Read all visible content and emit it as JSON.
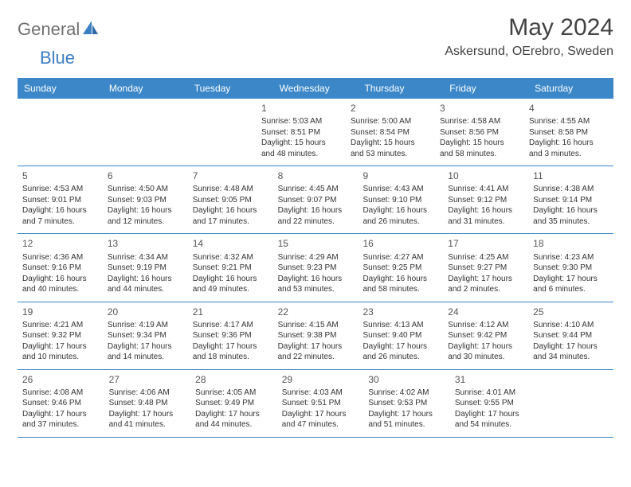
{
  "logo": {
    "general": "General",
    "blue": "Blue"
  },
  "title": "May 2024",
  "location": "Askersund, OErebro, Sweden",
  "colors": {
    "header_bg": "#3b87c8",
    "header_text": "#ffffff",
    "divider": "#3b87c8",
    "body_text": "#333333",
    "title_text": "#424242",
    "logo_gray": "#6f6f6f",
    "logo_blue": "#3b7fc4",
    "background": "#ffffff"
  },
  "layout": {
    "columns": 7,
    "rows": 5,
    "day_header_fontsize": 12,
    "cell_fontsize": 10,
    "title_fontsize": 30,
    "location_fontsize": 16
  },
  "dayNames": [
    "Sunday",
    "Monday",
    "Tuesday",
    "Wednesday",
    "Thursday",
    "Friday",
    "Saturday"
  ],
  "weeks": [
    [
      null,
      null,
      null,
      {
        "n": "1",
        "sr": "Sunrise: 5:03 AM",
        "ss": "Sunset: 8:51 PM",
        "dl1": "Daylight: 15 hours",
        "dl2": "and 48 minutes."
      },
      {
        "n": "2",
        "sr": "Sunrise: 5:00 AM",
        "ss": "Sunset: 8:54 PM",
        "dl1": "Daylight: 15 hours",
        "dl2": "and 53 minutes."
      },
      {
        "n": "3",
        "sr": "Sunrise: 4:58 AM",
        "ss": "Sunset: 8:56 PM",
        "dl1": "Daylight: 15 hours",
        "dl2": "and 58 minutes."
      },
      {
        "n": "4",
        "sr": "Sunrise: 4:55 AM",
        "ss": "Sunset: 8:58 PM",
        "dl1": "Daylight: 16 hours",
        "dl2": "and 3 minutes."
      }
    ],
    [
      {
        "n": "5",
        "sr": "Sunrise: 4:53 AM",
        "ss": "Sunset: 9:01 PM",
        "dl1": "Daylight: 16 hours",
        "dl2": "and 7 minutes."
      },
      {
        "n": "6",
        "sr": "Sunrise: 4:50 AM",
        "ss": "Sunset: 9:03 PM",
        "dl1": "Daylight: 16 hours",
        "dl2": "and 12 minutes."
      },
      {
        "n": "7",
        "sr": "Sunrise: 4:48 AM",
        "ss": "Sunset: 9:05 PM",
        "dl1": "Daylight: 16 hours",
        "dl2": "and 17 minutes."
      },
      {
        "n": "8",
        "sr": "Sunrise: 4:45 AM",
        "ss": "Sunset: 9:07 PM",
        "dl1": "Daylight: 16 hours",
        "dl2": "and 22 minutes."
      },
      {
        "n": "9",
        "sr": "Sunrise: 4:43 AM",
        "ss": "Sunset: 9:10 PM",
        "dl1": "Daylight: 16 hours",
        "dl2": "and 26 minutes."
      },
      {
        "n": "10",
        "sr": "Sunrise: 4:41 AM",
        "ss": "Sunset: 9:12 PM",
        "dl1": "Daylight: 16 hours",
        "dl2": "and 31 minutes."
      },
      {
        "n": "11",
        "sr": "Sunrise: 4:38 AM",
        "ss": "Sunset: 9:14 PM",
        "dl1": "Daylight: 16 hours",
        "dl2": "and 35 minutes."
      }
    ],
    [
      {
        "n": "12",
        "sr": "Sunrise: 4:36 AM",
        "ss": "Sunset: 9:16 PM",
        "dl1": "Daylight: 16 hours",
        "dl2": "and 40 minutes."
      },
      {
        "n": "13",
        "sr": "Sunrise: 4:34 AM",
        "ss": "Sunset: 9:19 PM",
        "dl1": "Daylight: 16 hours",
        "dl2": "and 44 minutes."
      },
      {
        "n": "14",
        "sr": "Sunrise: 4:32 AM",
        "ss": "Sunset: 9:21 PM",
        "dl1": "Daylight: 16 hours",
        "dl2": "and 49 minutes."
      },
      {
        "n": "15",
        "sr": "Sunrise: 4:29 AM",
        "ss": "Sunset: 9:23 PM",
        "dl1": "Daylight: 16 hours",
        "dl2": "and 53 minutes."
      },
      {
        "n": "16",
        "sr": "Sunrise: 4:27 AM",
        "ss": "Sunset: 9:25 PM",
        "dl1": "Daylight: 16 hours",
        "dl2": "and 58 minutes."
      },
      {
        "n": "17",
        "sr": "Sunrise: 4:25 AM",
        "ss": "Sunset: 9:27 PM",
        "dl1": "Daylight: 17 hours",
        "dl2": "and 2 minutes."
      },
      {
        "n": "18",
        "sr": "Sunrise: 4:23 AM",
        "ss": "Sunset: 9:30 PM",
        "dl1": "Daylight: 17 hours",
        "dl2": "and 6 minutes."
      }
    ],
    [
      {
        "n": "19",
        "sr": "Sunrise: 4:21 AM",
        "ss": "Sunset: 9:32 PM",
        "dl1": "Daylight: 17 hours",
        "dl2": "and 10 minutes."
      },
      {
        "n": "20",
        "sr": "Sunrise: 4:19 AM",
        "ss": "Sunset: 9:34 PM",
        "dl1": "Daylight: 17 hours",
        "dl2": "and 14 minutes."
      },
      {
        "n": "21",
        "sr": "Sunrise: 4:17 AM",
        "ss": "Sunset: 9:36 PM",
        "dl1": "Daylight: 17 hours",
        "dl2": "and 18 minutes."
      },
      {
        "n": "22",
        "sr": "Sunrise: 4:15 AM",
        "ss": "Sunset: 9:38 PM",
        "dl1": "Daylight: 17 hours",
        "dl2": "and 22 minutes."
      },
      {
        "n": "23",
        "sr": "Sunrise: 4:13 AM",
        "ss": "Sunset: 9:40 PM",
        "dl1": "Daylight: 17 hours",
        "dl2": "and 26 minutes."
      },
      {
        "n": "24",
        "sr": "Sunrise: 4:12 AM",
        "ss": "Sunset: 9:42 PM",
        "dl1": "Daylight: 17 hours",
        "dl2": "and 30 minutes."
      },
      {
        "n": "25",
        "sr": "Sunrise: 4:10 AM",
        "ss": "Sunset: 9:44 PM",
        "dl1": "Daylight: 17 hours",
        "dl2": "and 34 minutes."
      }
    ],
    [
      {
        "n": "26",
        "sr": "Sunrise: 4:08 AM",
        "ss": "Sunset: 9:46 PM",
        "dl1": "Daylight: 17 hours",
        "dl2": "and 37 minutes."
      },
      {
        "n": "27",
        "sr": "Sunrise: 4:06 AM",
        "ss": "Sunset: 9:48 PM",
        "dl1": "Daylight: 17 hours",
        "dl2": "and 41 minutes."
      },
      {
        "n": "28",
        "sr": "Sunrise: 4:05 AM",
        "ss": "Sunset: 9:49 PM",
        "dl1": "Daylight: 17 hours",
        "dl2": "and 44 minutes."
      },
      {
        "n": "29",
        "sr": "Sunrise: 4:03 AM",
        "ss": "Sunset: 9:51 PM",
        "dl1": "Daylight: 17 hours",
        "dl2": "and 47 minutes."
      },
      {
        "n": "30",
        "sr": "Sunrise: 4:02 AM",
        "ss": "Sunset: 9:53 PM",
        "dl1": "Daylight: 17 hours",
        "dl2": "and 51 minutes."
      },
      {
        "n": "31",
        "sr": "Sunrise: 4:01 AM",
        "ss": "Sunset: 9:55 PM",
        "dl1": "Daylight: 17 hours",
        "dl2": "and 54 minutes."
      },
      null
    ]
  ]
}
